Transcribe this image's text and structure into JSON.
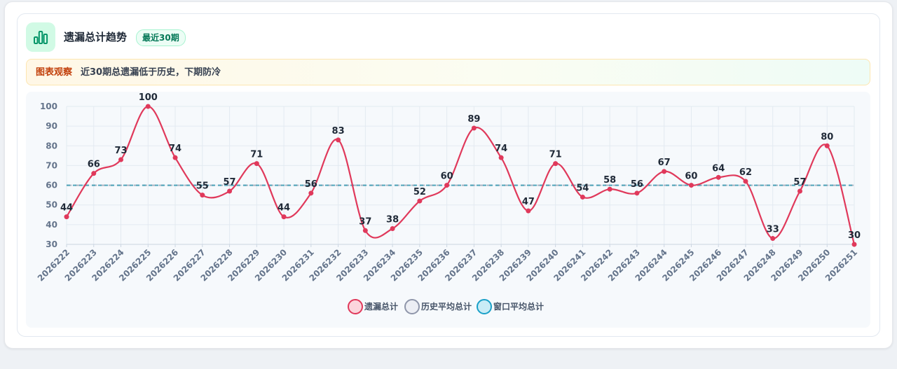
{
  "header": {
    "title": "遗漏总计趋势",
    "badge": "最近30期",
    "icon": "bar-chart-icon"
  },
  "observation": {
    "label": "图表观察",
    "text": "近30期总遗漏低于历史，下期防冷"
  },
  "colors": {
    "series": "#e0395b",
    "reference": "#4aa3b8",
    "accent": "#10b981"
  },
  "chart_data": {
    "type": "line",
    "categories": [
      "2026222",
      "2026223",
      "2026224",
      "2026225",
      "2026226",
      "2026227",
      "2026228",
      "2026229",
      "2026230",
      "2026231",
      "2026232",
      "2026233",
      "2026234",
      "2026235",
      "2026236",
      "2026237",
      "2026238",
      "2026239",
      "2026240",
      "2026241",
      "2026242",
      "2026243",
      "2026244",
      "2026245",
      "2026246",
      "2026247",
      "2026248",
      "2026249",
      "2026250",
      "2026251"
    ],
    "series": [
      {
        "name": "遗漏总计",
        "values": [
          44,
          66,
          73,
          100,
          74,
          55,
          57,
          71,
          44,
          56,
          83,
          37,
          38,
          52,
          60,
          89,
          74,
          47,
          71,
          54,
          58,
          56,
          67,
          60,
          64,
          62,
          33,
          57,
          80,
          30
        ]
      }
    ],
    "reference_lines": [
      {
        "name": "历史平均总计",
        "value": 60
      },
      {
        "name": "窗口平均总计",
        "value": 60
      }
    ],
    "ylim": [
      30,
      100
    ],
    "yticks": [
      30,
      40,
      50,
      60,
      70,
      80,
      90,
      100
    ],
    "grid": true,
    "legend_position": "bottom-center"
  }
}
